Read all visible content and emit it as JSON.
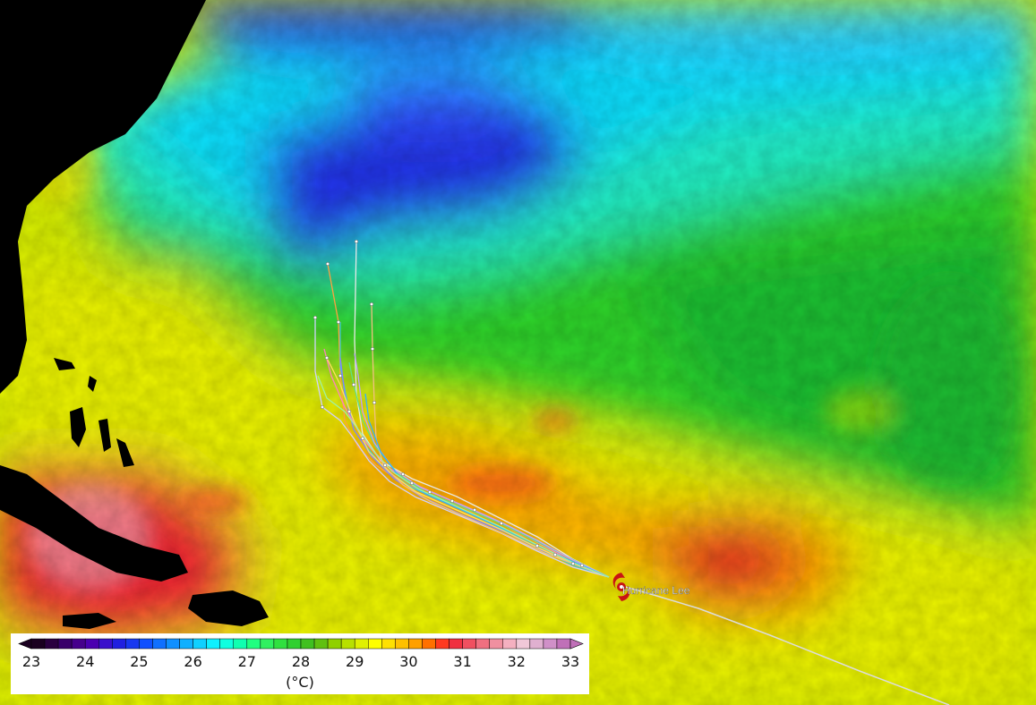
{
  "map": {
    "storm": {
      "name": "Hurricane Lee",
      "icon": "hurricane-icon",
      "color": "#c81414"
    },
    "palette": {
      "land": "#000000",
      "track_past": "#dcdcdc"
    }
  },
  "legend": {
    "unit": "(°C)",
    "min": 23,
    "max": 33,
    "ticks": [
      "23",
      "24",
      "25",
      "26",
      "27",
      "28",
      "29",
      "30",
      "31",
      "32",
      "33"
    ],
    "colors": [
      "#1a0020",
      "#2a0040",
      "#38006a",
      "#45008c",
      "#4a00b0",
      "#3a10cc",
      "#2020e0",
      "#1838f0",
      "#1050ff",
      "#1070ff",
      "#1090ff",
      "#10b0ff",
      "#10d0ff",
      "#10f0ff",
      "#10ffe0",
      "#10ffb0",
      "#20ff80",
      "#30f060",
      "#30e040",
      "#30d030",
      "#40c020",
      "#60c010",
      "#90d000",
      "#b8e000",
      "#e0f000",
      "#ffff00",
      "#ffe000",
      "#ffc000",
      "#ffa000",
      "#ff7000",
      "#ff3a20",
      "#f03040",
      "#f05060",
      "#f07080",
      "#f090a0",
      "#f4b0c0",
      "#f0c8d8",
      "#e0b0d0",
      "#d090c8",
      "#c070b8"
    ]
  }
}
